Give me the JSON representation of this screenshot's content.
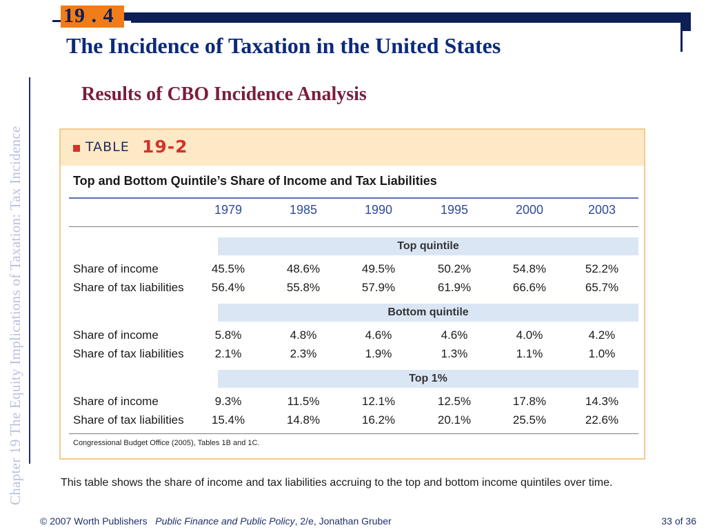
{
  "header": {
    "section_number": "19 . 4",
    "title": "The Incidence of Taxation in the United States",
    "subtitle": "Results of CBO Incidence Analysis"
  },
  "sidebar": {
    "chapter_text": "Chapter 19  The Equity Implications of Taxation: Tax Incidence"
  },
  "table": {
    "label_word": "TABLE",
    "label_number": "19-2",
    "caption": "Top and Bottom Quintile’s Share of Income and Tax Liabilities",
    "years": [
      "1979",
      "1985",
      "1990",
      "1995",
      "2000",
      "2003"
    ],
    "groups": [
      {
        "name": "Top quintile",
        "rows": [
          {
            "label": "Share of income",
            "values": [
              "45.5%",
              "48.6%",
              "49.5%",
              "50.2%",
              "54.8%",
              "52.2%"
            ]
          },
          {
            "label": "Share of tax liabilities",
            "values": [
              "56.4%",
              "55.8%",
              "57.9%",
              "61.9%",
              "66.6%",
              "65.7%"
            ]
          }
        ]
      },
      {
        "name": "Bottom quintile",
        "rows": [
          {
            "label": "Share of income",
            "values": [
              "5.8%",
              "4.8%",
              "4.6%",
              "4.6%",
              "4.0%",
              "4.2%"
            ]
          },
          {
            "label": "Share of tax liabilities",
            "values": [
              "2.1%",
              "2.3%",
              "1.9%",
              "1.3%",
              "1.1%",
              "1.0%"
            ]
          }
        ]
      },
      {
        "name": "Top 1%",
        "rows": [
          {
            "label": "Share of income",
            "values": [
              "9.3%",
              "11.5%",
              "12.1%",
              "12.5%",
              "17.8%",
              "14.3%"
            ]
          },
          {
            "label": "Share of tax liabilities",
            "values": [
              "15.4%",
              "14.8%",
              "16.2%",
              "20.1%",
              "25.5%",
              "22.6%"
            ]
          }
        ]
      }
    ],
    "source": "Congressional Budget Office (2005), Tables 1B and 1C."
  },
  "description": "This table shows the share of income and tax liabilities accruing to the top and bottom income quintiles over time.",
  "footer": {
    "copyright": "© 2007 Worth Publishers",
    "book_title": "Public Finance and Public Policy",
    "book_rest": ", 2/e, Jonathan Gruber",
    "page": "33 of 36"
  },
  "colors": {
    "title_navy": "#0d2a7a",
    "subtitle_maroon": "#7a1e3a",
    "badge_orange": "#f07c1a",
    "table_header_bg": "#fde9c6",
    "band_blue": "#dbe6f5",
    "year_blue": "#2e4a9a"
  }
}
